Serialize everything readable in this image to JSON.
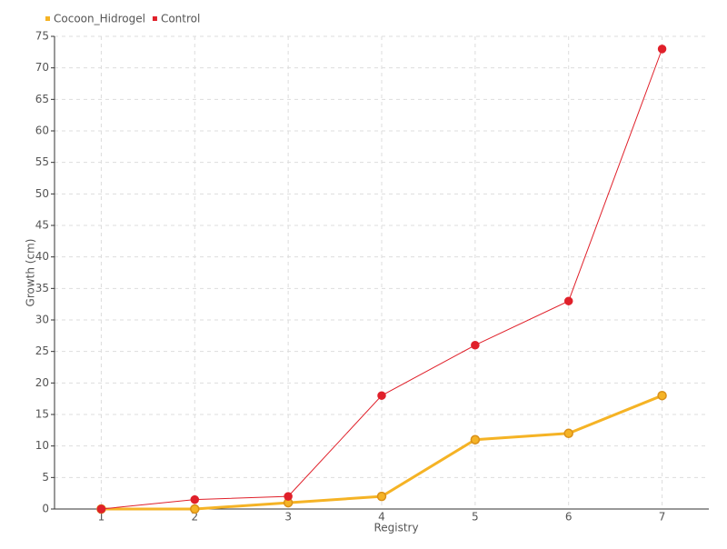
{
  "chart_data": {
    "type": "line",
    "x_label": "Registry",
    "y_label": "Growth (cm)",
    "categories": [
      "1",
      "2",
      "3",
      "4",
      "5",
      "6",
      "7"
    ],
    "series": [
      {
        "name": "Cocoon_Hidrogel",
        "color": "#f5b325",
        "values": [
          0,
          0,
          1,
          2,
          11,
          12,
          18
        ]
      },
      {
        "name": "Control",
        "color": "#e0202a",
        "values": [
          0,
          1.5,
          2,
          18,
          26,
          33,
          73
        ]
      }
    ],
    "ylim": [
      0,
      75
    ],
    "yticks": [
      0,
      5,
      10,
      15,
      20,
      25,
      30,
      35,
      40,
      45,
      50,
      55,
      60,
      65,
      70,
      75
    ],
    "grid": true,
    "legend": "top-left"
  }
}
